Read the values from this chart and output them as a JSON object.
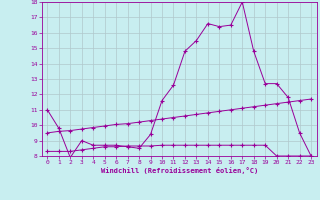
{
  "xlabel": "Windchill (Refroidissement éolien,°C)",
  "background_color": "#c8eef0",
  "grid_color": "#b0c8cc",
  "line_color": "#990099",
  "xlim": [
    -0.5,
    23.5
  ],
  "ylim": [
    8,
    18
  ],
  "yticks": [
    8,
    9,
    10,
    11,
    12,
    13,
    14,
    15,
    16,
    17,
    18
  ],
  "xticks": [
    0,
    1,
    2,
    3,
    4,
    5,
    6,
    7,
    8,
    9,
    10,
    11,
    12,
    13,
    14,
    15,
    16,
    17,
    18,
    19,
    20,
    21,
    22,
    23
  ],
  "series1_x": [
    0,
    1,
    2,
    3,
    4,
    5,
    6,
    7,
    8,
    9,
    10,
    11,
    12,
    13,
    14,
    15,
    16,
    17,
    18,
    19,
    20,
    21,
    22,
    23
  ],
  "series1_y": [
    11.0,
    9.8,
    7.9,
    9.0,
    8.7,
    8.7,
    8.7,
    8.6,
    8.5,
    9.4,
    11.6,
    12.6,
    14.8,
    15.5,
    16.6,
    16.4,
    16.5,
    18.0,
    14.8,
    12.7,
    12.7,
    11.8,
    9.5,
    8.0
  ],
  "series2_x": [
    0,
    1,
    2,
    3,
    4,
    5,
    6,
    7,
    8,
    9,
    10,
    11,
    12,
    13,
    14,
    15,
    16,
    17,
    18,
    19,
    20,
    21,
    22,
    23
  ],
  "series2_y": [
    8.3,
    8.3,
    8.3,
    8.4,
    8.5,
    8.6,
    8.6,
    8.65,
    8.65,
    8.65,
    8.7,
    8.7,
    8.7,
    8.7,
    8.7,
    8.7,
    8.7,
    8.7,
    8.7,
    8.7,
    8.0,
    8.0,
    8.0,
    8.0
  ],
  "series3_x": [
    0,
    1,
    2,
    3,
    4,
    5,
    6,
    7,
    8,
    9,
    10,
    11,
    12,
    13,
    14,
    15,
    16,
    17,
    18,
    19,
    20,
    21,
    22,
    23
  ],
  "series3_y": [
    9.5,
    9.6,
    9.65,
    9.75,
    9.85,
    9.95,
    10.05,
    10.1,
    10.2,
    10.3,
    10.4,
    10.5,
    10.6,
    10.7,
    10.8,
    10.9,
    11.0,
    11.1,
    11.2,
    11.3,
    11.4,
    11.5,
    11.6,
    11.7
  ]
}
